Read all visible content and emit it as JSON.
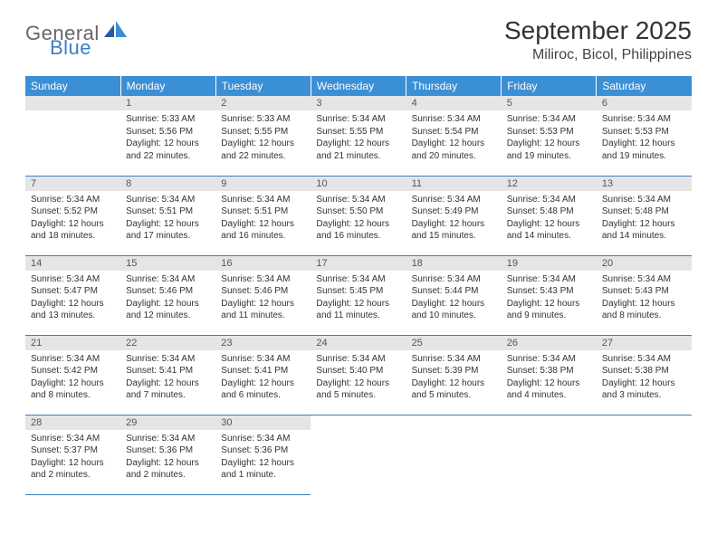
{
  "brand": {
    "general": "General",
    "blue": "Blue"
  },
  "title": "September 2025",
  "location": "Miliroc, Bicol, Philippines",
  "colors": {
    "header_bg": "#3b8fd4",
    "header_text": "#ffffff",
    "date_band_bg": "#e5e5e5",
    "date_band_text": "#555555",
    "cell_border": "#3b7fc4",
    "body_text": "#333333",
    "logo_gray": "#666666",
    "logo_blue": "#3b7fc4",
    "page_bg": "#ffffff"
  },
  "day_headers": [
    "Sunday",
    "Monday",
    "Tuesday",
    "Wednesday",
    "Thursday",
    "Friday",
    "Saturday"
  ],
  "weeks": [
    [
      {
        "empty": true
      },
      {
        "d": "1",
        "sr": "5:33 AM",
        "ss": "5:56 PM",
        "dl": "12 hours and 22 minutes."
      },
      {
        "d": "2",
        "sr": "5:33 AM",
        "ss": "5:55 PM",
        "dl": "12 hours and 22 minutes."
      },
      {
        "d": "3",
        "sr": "5:34 AM",
        "ss": "5:55 PM",
        "dl": "12 hours and 21 minutes."
      },
      {
        "d": "4",
        "sr": "5:34 AM",
        "ss": "5:54 PM",
        "dl": "12 hours and 20 minutes."
      },
      {
        "d": "5",
        "sr": "5:34 AM",
        "ss": "5:53 PM",
        "dl": "12 hours and 19 minutes."
      },
      {
        "d": "6",
        "sr": "5:34 AM",
        "ss": "5:53 PM",
        "dl": "12 hours and 19 minutes."
      }
    ],
    [
      {
        "d": "7",
        "sr": "5:34 AM",
        "ss": "5:52 PM",
        "dl": "12 hours and 18 minutes."
      },
      {
        "d": "8",
        "sr": "5:34 AM",
        "ss": "5:51 PM",
        "dl": "12 hours and 17 minutes."
      },
      {
        "d": "9",
        "sr": "5:34 AM",
        "ss": "5:51 PM",
        "dl": "12 hours and 16 minutes."
      },
      {
        "d": "10",
        "sr": "5:34 AM",
        "ss": "5:50 PM",
        "dl": "12 hours and 16 minutes."
      },
      {
        "d": "11",
        "sr": "5:34 AM",
        "ss": "5:49 PM",
        "dl": "12 hours and 15 minutes."
      },
      {
        "d": "12",
        "sr": "5:34 AM",
        "ss": "5:48 PM",
        "dl": "12 hours and 14 minutes."
      },
      {
        "d": "13",
        "sr": "5:34 AM",
        "ss": "5:48 PM",
        "dl": "12 hours and 14 minutes."
      }
    ],
    [
      {
        "d": "14",
        "sr": "5:34 AM",
        "ss": "5:47 PM",
        "dl": "12 hours and 13 minutes."
      },
      {
        "d": "15",
        "sr": "5:34 AM",
        "ss": "5:46 PM",
        "dl": "12 hours and 12 minutes."
      },
      {
        "d": "16",
        "sr": "5:34 AM",
        "ss": "5:46 PM",
        "dl": "12 hours and 11 minutes."
      },
      {
        "d": "17",
        "sr": "5:34 AM",
        "ss": "5:45 PM",
        "dl": "12 hours and 11 minutes."
      },
      {
        "d": "18",
        "sr": "5:34 AM",
        "ss": "5:44 PM",
        "dl": "12 hours and 10 minutes."
      },
      {
        "d": "19",
        "sr": "5:34 AM",
        "ss": "5:43 PM",
        "dl": "12 hours and 9 minutes."
      },
      {
        "d": "20",
        "sr": "5:34 AM",
        "ss": "5:43 PM",
        "dl": "12 hours and 8 minutes."
      }
    ],
    [
      {
        "d": "21",
        "sr": "5:34 AM",
        "ss": "5:42 PM",
        "dl": "12 hours and 8 minutes."
      },
      {
        "d": "22",
        "sr": "5:34 AM",
        "ss": "5:41 PM",
        "dl": "12 hours and 7 minutes."
      },
      {
        "d": "23",
        "sr": "5:34 AM",
        "ss": "5:41 PM",
        "dl": "12 hours and 6 minutes."
      },
      {
        "d": "24",
        "sr": "5:34 AM",
        "ss": "5:40 PM",
        "dl": "12 hours and 5 minutes."
      },
      {
        "d": "25",
        "sr": "5:34 AM",
        "ss": "5:39 PM",
        "dl": "12 hours and 5 minutes."
      },
      {
        "d": "26",
        "sr": "5:34 AM",
        "ss": "5:38 PM",
        "dl": "12 hours and 4 minutes."
      },
      {
        "d": "27",
        "sr": "5:34 AM",
        "ss": "5:38 PM",
        "dl": "12 hours and 3 minutes."
      }
    ],
    [
      {
        "d": "28",
        "sr": "5:34 AM",
        "ss": "5:37 PM",
        "dl": "12 hours and 2 minutes."
      },
      {
        "d": "29",
        "sr": "5:34 AM",
        "ss": "5:36 PM",
        "dl": "12 hours and 2 minutes."
      },
      {
        "d": "30",
        "sr": "5:34 AM",
        "ss": "5:36 PM",
        "dl": "12 hours and 1 minute."
      },
      {
        "blank": true
      },
      {
        "blank": true
      },
      {
        "blank": true
      },
      {
        "blank": true
      }
    ]
  ],
  "labels": {
    "sunrise": "Sunrise:",
    "sunset": "Sunset:",
    "daylight": "Daylight:"
  }
}
